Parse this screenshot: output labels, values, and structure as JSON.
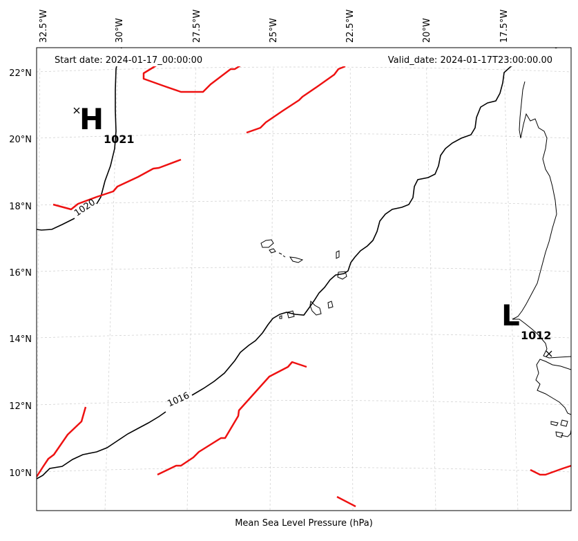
{
  "header": {
    "start_date": "Start date: 2024-01-17_00:00:00",
    "valid_date": "Valid_date: 2024-01-17T23:00:00.00"
  },
  "footer": {
    "caption": "Mean Sea Level Pressure (hPa)"
  },
  "axes": {
    "lon_labels": [
      "32.5°W",
      "30°W",
      "27.5°W",
      "25°W",
      "22.5°W",
      "20°W",
      "17.5°W"
    ],
    "lat_labels": [
      "22°N",
      "20°N",
      "18°N",
      "16°N",
      "14°N",
      "12°N",
      "10°N"
    ]
  },
  "pressure_centers": [
    {
      "type": "H",
      "value": "1021"
    },
    {
      "type": "L",
      "value": "1012"
    }
  ],
  "isobar_labels": [
    "1020",
    "1016"
  ],
  "colors": {
    "isobar": "#000000",
    "front": "#ee1111",
    "grid": "#cccccc"
  }
}
